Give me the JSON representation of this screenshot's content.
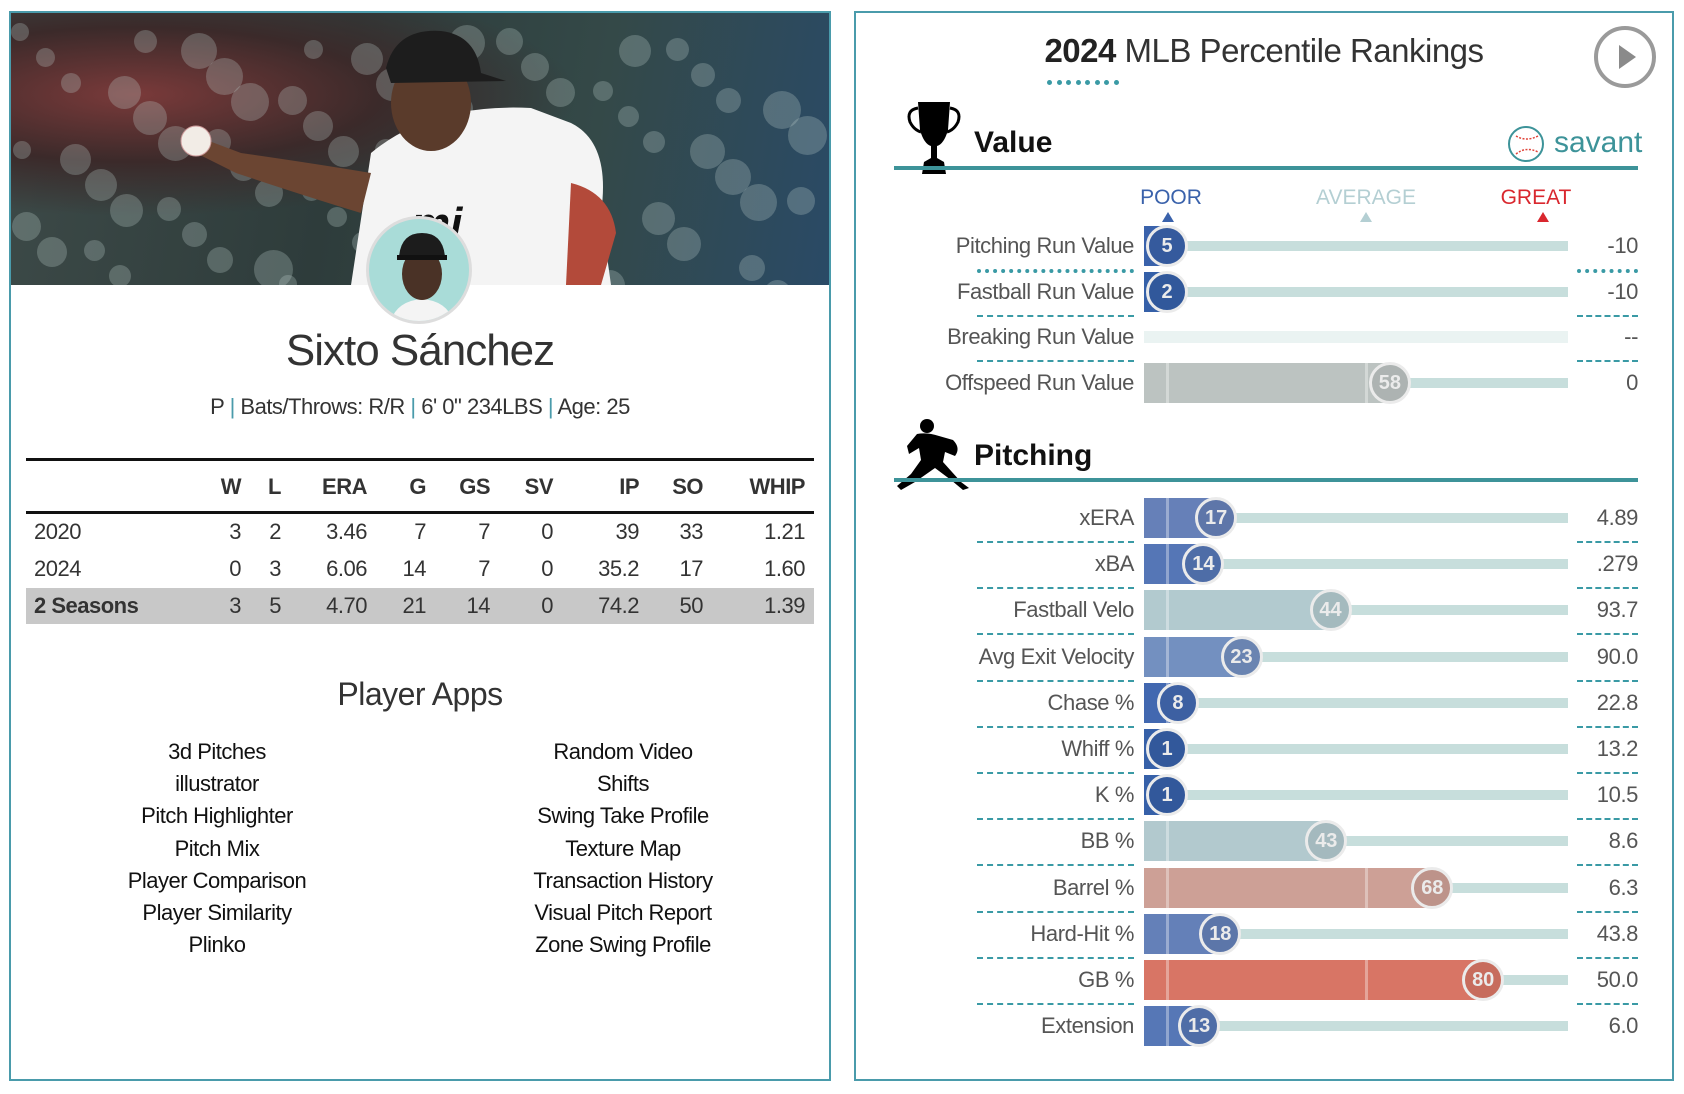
{
  "player": {
    "name": "Sixto Sánchez",
    "position": "P",
    "bats_throws": "Bats/Throws: R/R",
    "size": "6' 0\" 234LBS",
    "age": "Age: 25",
    "separator": "|"
  },
  "stats_table": {
    "columns": [
      "",
      "W",
      "L",
      "ERA",
      "G",
      "GS",
      "SV",
      "IP",
      "SO",
      "WHIP"
    ],
    "rows": [
      [
        "2020",
        "3",
        "2",
        "3.46",
        "7",
        "7",
        "0",
        "39",
        "33",
        "1.21"
      ],
      [
        "2024",
        "0",
        "3",
        "6.06",
        "14",
        "7",
        "0",
        "35.2",
        "17",
        "1.60"
      ],
      [
        "2 Seasons",
        "3",
        "5",
        "4.70",
        "21",
        "14",
        "0",
        "74.2",
        "50",
        "1.39"
      ]
    ]
  },
  "player_apps": {
    "title": "Player Apps",
    "left": [
      "3d Pitches",
      "illustrator",
      "Pitch Highlighter",
      "Pitch Mix",
      "Player Comparison",
      "Player Similarity",
      "Plinko"
    ],
    "right": [
      "Random Video",
      "Shifts",
      "Swing Take Profile",
      "Texture Map",
      "Transaction History",
      "Visual Pitch Report",
      "Zone Swing Profile"
    ]
  },
  "rankings": {
    "title_year": "2024",
    "title_rest": "MLB Percentile Rankings",
    "brand": "savant",
    "scale": {
      "poor": "POOR",
      "average": "AVERAGE",
      "great": "GREAT"
    },
    "colors": {
      "accent": "#3d9399",
      "poor": "#3a62ab",
      "average": "#b4cfd3",
      "great": "#d9272e",
      "track": "#c7dedc"
    },
    "sections": [
      {
        "title": "Value",
        "icon": "trophy-icon",
        "rows": [
          {
            "label": "Pitching Run Value",
            "percentile": 5,
            "value": "-10",
            "color": "#3a62ab"
          },
          {
            "label": "Fastball Run Value",
            "percentile": 2,
            "value": "-10",
            "color": "#3560a8"
          },
          {
            "label": "Breaking Run Value",
            "percentile": null,
            "value": "--",
            "color": "#eaf3f2"
          },
          {
            "label": "Offspeed Run Value",
            "percentile": 58,
            "value": "0",
            "color": "#bcc3c1"
          }
        ]
      },
      {
        "title": "Pitching",
        "icon": "pitcher-icon",
        "rows": [
          {
            "label": "xERA",
            "percentile": 17,
            "value": "4.89",
            "color": "#6680b8"
          },
          {
            "label": "xBA",
            "percentile": 14,
            "value": ".279",
            "color": "#5576b6"
          },
          {
            "label": "Fastball Velo",
            "percentile": 44,
            "value": "93.7",
            "color": "#b2cacf"
          },
          {
            "label": "Avg Exit Velocity",
            "percentile": 23,
            "value": "90.0",
            "color": "#7390c0"
          },
          {
            "label": "Chase %",
            "percentile": 8,
            "value": "22.8",
            "color": "#4268b0"
          },
          {
            "label": "Whiff %",
            "percentile": 1,
            "value": "13.2",
            "color": "#3660a8"
          },
          {
            "label": "K %",
            "percentile": 1,
            "value": "10.5",
            "color": "#3660a8"
          },
          {
            "label": "BB %",
            "percentile": 43,
            "value": "8.6",
            "color": "#b2c9ce"
          },
          {
            "label": "Barrel %",
            "percentile": 68,
            "value": "6.3",
            "color": "#cda096"
          },
          {
            "label": "Hard-Hit %",
            "percentile": 18,
            "value": "43.8",
            "color": "#6480b8"
          },
          {
            "label": "GB %",
            "percentile": 80,
            "value": "50.0",
            "color": "#d87565"
          },
          {
            "label": "Extension",
            "percentile": 13,
            "value": "6.0",
            "color": "#5677b6"
          }
        ]
      }
    ]
  }
}
